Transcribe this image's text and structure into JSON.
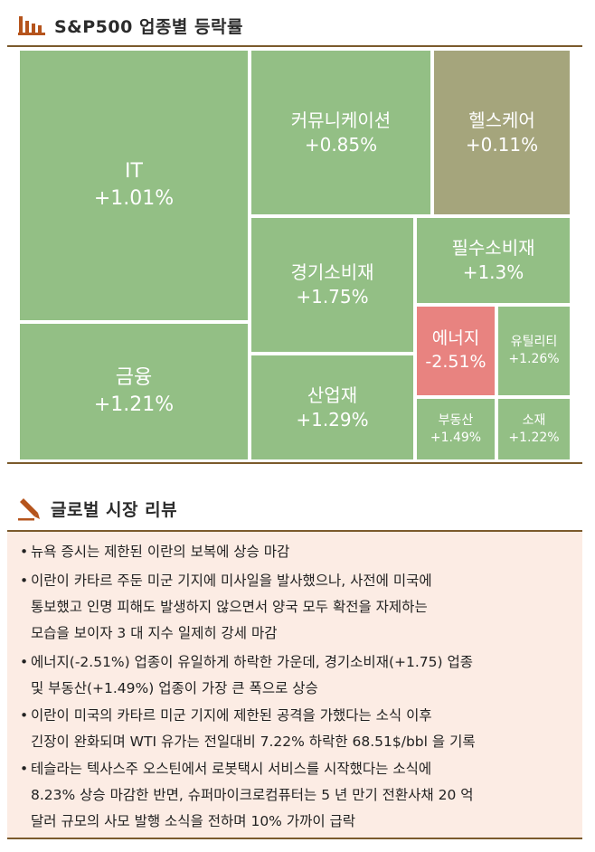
{
  "header": {
    "title": "S&P500 업종별 등락률",
    "icon": "bar-chart-icon"
  },
  "chart_data": {
    "type": "treemap",
    "title": "S&P500 업종별 등락률",
    "colors": {
      "up": "#93bf85",
      "flat": "#a5a57c",
      "down": "#e88380"
    },
    "sectors": [
      {
        "name": "IT",
        "change": "+1.01%",
        "value": 1.01
      },
      {
        "name": "금융",
        "change": "+1.21%",
        "value": 1.21
      },
      {
        "name": "커뮤니케이션",
        "change": "+0.85%",
        "value": 0.85
      },
      {
        "name": "헬스케어",
        "change": "+0.11%",
        "value": 0.11
      },
      {
        "name": "경기소비재",
        "change": "+1.75%",
        "value": 1.75
      },
      {
        "name": "산업재",
        "change": "+1.29%",
        "value": 1.29
      },
      {
        "name": "필수소비재",
        "change": "+1.3%",
        "value": 1.3
      },
      {
        "name": "에너지",
        "change": "-2.51%",
        "value": -2.51
      },
      {
        "name": "유틸리티",
        "change": "+1.26%",
        "value": 1.26
      },
      {
        "name": "부동산",
        "change": "+1.49%",
        "value": 1.49
      },
      {
        "name": "소재",
        "change": "+1.22%",
        "value": 1.22
      }
    ]
  },
  "review": {
    "title": "글로벌 시장 리뷰",
    "icon": "pen-icon",
    "bullets": [
      {
        "lines": [
          "뉴욕 증시는 제한된 이란의 보복에 상승 마감"
        ]
      },
      {
        "lines": [
          "이란이 카타르 주둔 미군 기지에 미사일을 발사했으나, 사전에 미국에",
          "통보했고 인명 피해도 발생하지 않으면서 양국 모두 확전을 자제하는",
          "모습을 보이자 3 대 지수 일제히 강세 마감"
        ]
      },
      {
        "lines": [
          "에너지(-2.51%) 업종이 유일하게 하락한 가운데, 경기소비재(+1.75) 업종",
          "및 부동산(+1.49%) 업종이 가장 큰 폭으로 상승"
        ]
      },
      {
        "lines": [
          "이란이 미국의 카타르 미군 기지에 제한된 공격을 가했다는 소식 이후",
          "긴장이 완화되며 WTI 유가는 전일대비 7.22% 하락한 68.51$/bbl 을 기록"
        ]
      },
      {
        "lines": [
          "테슬라는 텍사스주 오스틴에서 로봇택시 서비스를 시작했다는 소식에",
          "8.23% 상승 마감한 반면, 슈퍼마이크로컴퓨터는 5 년 만기 전환사채 20 억",
          "달러 규모의 사모 발행 소식을 전하며 10% 가까이 급락"
        ]
      }
    ]
  }
}
